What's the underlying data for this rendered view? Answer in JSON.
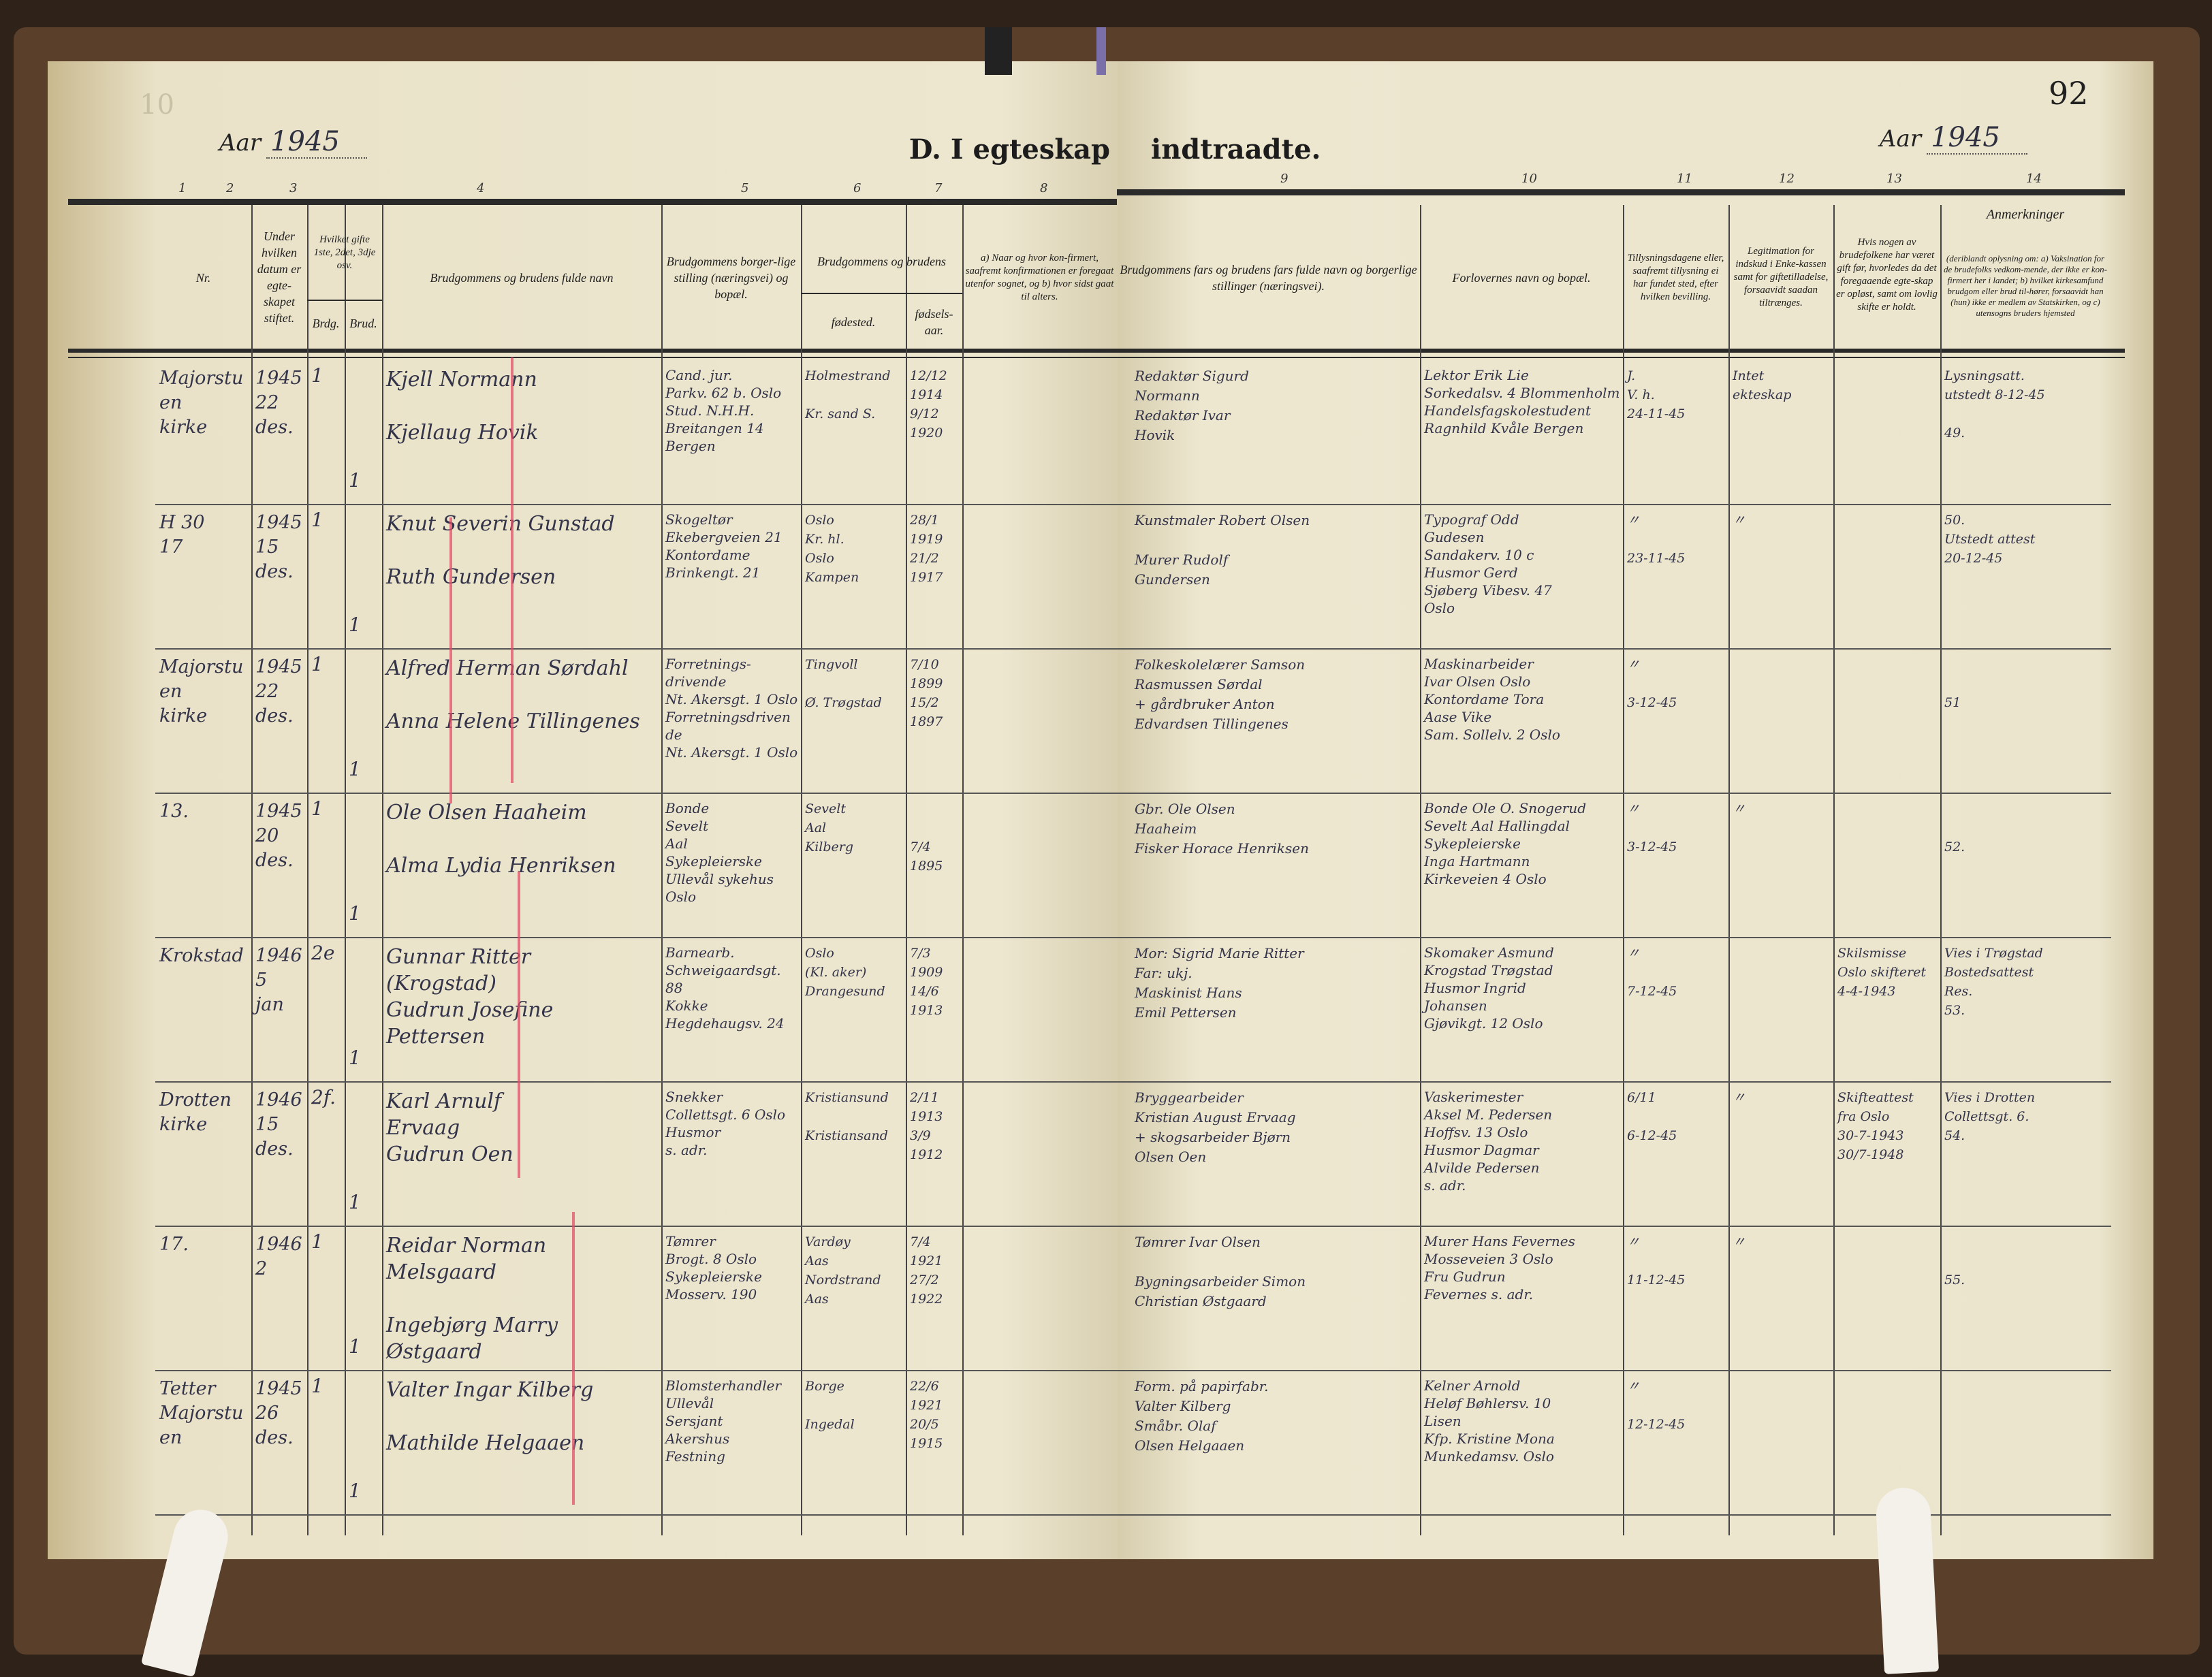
{
  "left_page": {
    "page_number": "10",
    "year_label": "Aar",
    "year_value": "1945",
    "title": "D. I egteskap"
  },
  "right_page": {
    "page_number": "92",
    "year_label": "Aar",
    "year_value": "1945",
    "title": "indtraadte."
  },
  "column_numbers": [
    "1",
    "2",
    "3",
    "4",
    "5",
    "6",
    "7",
    "8",
    "9",
    "10",
    "11",
    "12",
    "13",
    "14"
  ],
  "headers": {
    "c1": "Nr.",
    "c2": "Under hvilken datum er egte-skapet stiftet.",
    "c3": "Hvilket gifte 1ste, 2det, 3dje osv.",
    "c3a": "Brdg.",
    "c3b": "Brud.",
    "c4": "Brudgommens og brudens fulde navn",
    "c5": "Brudgommens borger-lige stilling (næringsvei) og bopæl.",
    "c67": "Brudgommens og brudens",
    "c6": "fødested.",
    "c7": "fødsels-aar.",
    "c8": "a) Naar og hvor kon-firmert, saafremt konfirmationen er foregaat utenfor sognet, og b) hvor sidst gaat til alters.",
    "c9": "Brudgommens fars og brudens fars fulde navn og borgerlige stillinger (næringsvei).",
    "c10": "Forlovernes navn og bopæl.",
    "c11": "Tillysningsdagene eller, saafremt tillysning ei har fundet sted, efter hvilken bevilling.",
    "c12": "Legitimation for indskud i Enke-kassen samt for giftetilladelse, forsaavidt saadan tiltrænges.",
    "c13": "Hvis nogen av brudefolkene har været gift før, hvorledes da det foregaaende egte-skap er opløst, samt om lovlig skifte er holdt.",
    "c14_title": "Anmerkninger",
    "c14": "(deriblandt oplysning om: a) Vaksination for de brudefolks vedkom-mende, der ikke er kon-firmert her i landet; b) hvilket kirkesamfund brudgom eller brud til-hører, forsaavidt han (hun) ikke er medlem av Statskirken, og c) utensogns bruders hjemsted"
  },
  "entries": [
    {
      "nr": "Majorstuen\nkirke",
      "date": "1945\n22\ndes.",
      "brdg": "1",
      "brud": "1",
      "names": "Kjell Normann\n\nKjellaug Hovik",
      "occupation": "Cand. jur.\nParkv. 62 b. Oslo\nStud. N.H.H.\nBreitangen 14 Bergen",
      "birthplace": "Holmestrand\n\nKr. sand S.",
      "birthyear": "12/12\n1914\n9/12\n1920",
      "confirmed": "",
      "fathers": "Redaktør Sigurd\nNormann\nRedaktør Ivar\nHovik",
      "witnesses": "Lektor Erik Lie\nSorkedalsv. 4 Blommenholm\nHandelsfagskolestudent\nRagnhild Kvåle Bergen",
      "banns": "J.\nV. h.\n24-11-45",
      "legitimation": "Intet\nekteskap",
      "previous": "",
      "remarks": "Lysningsatt.\nutstedt 8-12-45\n\n49."
    },
    {
      "nr": "H 30\n17",
      "date": "1945\n15\ndes.",
      "brdg": "1",
      "brud": "1",
      "names": "Knut Severin Gunstad\n\nRuth Gundersen",
      "occupation": "Skogeltør\nEkebergveien 21\nKontordame\nBrinkengt. 21",
      "birthplace": "Oslo\nKr. hl.\nOslo\nKampen",
      "birthyear": "28/1\n1919\n21/2\n1917",
      "confirmed": "",
      "fathers": "Kunstmaler Robert Olsen\n\nMurer Rudolf\nGundersen",
      "witnesses": "Typograf Odd\nGudesen\nSandakerv. 10 c\nHusmor Gerd\nSjøberg Vibesv. 47\nOslo",
      "banns": "〃\n\n23-11-45",
      "legitimation": "〃",
      "previous": "",
      "remarks": "50.\nUtstedt attest\n20-12-45"
    },
    {
      "nr": "Majorstuen\nkirke",
      "date": "1945\n22\ndes.",
      "brdg": "1",
      "brud": "1",
      "names": "Alfred Herman Sørdahl\n\nAnna Helene Tillingenes",
      "occupation": "Forretnings-\ndrivende\nNt. Akersgt. 1 Oslo\nForretningsdrivende\nNt. Akersgt. 1 Oslo",
      "birthplace": "Tingvoll\n\nØ. Trøgstad",
      "birthyear": "7/10\n1899\n15/2\n1897",
      "confirmed": "",
      "fathers": "Folkeskolelærer Samson\nRasmussen Sørdal\n+ gårdbruker Anton\nEdvardsen Tillingenes",
      "witnesses": "Maskinarbeider\nIvar Olsen Oslo\nKontordame Tora\nAase Vike\nSam. Sollelv. 2 Oslo",
      "banns": "〃\n\n3-12-45",
      "legitimation": "",
      "previous": "",
      "remarks": "\n\n51"
    },
    {
      "nr": "13.",
      "date": "1945\n20\ndes.",
      "brdg": "1",
      "brud": "1",
      "names": "Ole Olsen Haaheim\n\nAlma Lydia Henriksen",
      "occupation": "Bonde\nSevelt\nAal\nSykepleierske\nUllevål sykehus Oslo",
      "birthplace": "Sevelt\nAal\nKilberg",
      "birthyear": "\n\n7/4\n1895",
      "confirmed": "",
      "fathers": "Gbr. Ole Olsen\nHaaheim\nFisker Horace Henriksen",
      "witnesses": "Bonde Ole O. Snogerud\nSevelt Aal Hallingdal\nSykepleierske\nInga Hartmann\nKirkeveien 4 Oslo",
      "banns": "〃\n\n3-12-45",
      "legitimation": "〃",
      "previous": "",
      "remarks": "\n\n52."
    },
    {
      "nr": "Krokstad",
      "date": "1946\n5\njan",
      "brdg": "2e",
      "brud": "1",
      "names": "Gunnar Ritter\n(Krogstad)\nGudrun Josefine Pettersen",
      "occupation": "Barnearb.\nSchweigaardsgt. 88\nKokke\nHegdehaugsv. 24",
      "birthplace": "Oslo\n(Kl. aker)\nDrangesund",
      "birthyear": "7/3\n1909\n14/6\n1913",
      "confirmed": "",
      "fathers": "Mor: Sigrid Marie Ritter\nFar: ukj.\nMaskinist Hans\nEmil Pettersen",
      "witnesses": "Skomaker Asmund\nKrogstad Trøgstad\nHusmor Ingrid\nJohansen\nGjøvikgt. 12 Oslo",
      "banns": "〃\n\n7-12-45",
      "legitimation": "",
      "previous": "Skilsmisse\nOslo skifteret\n4-4-1943",
      "remarks": "Vies i Trøgstad\nBostedsattest\nRes.\n53."
    },
    {
      "nr": "Drotten\nkirke",
      "date": "1946\n15\ndes.",
      "brdg": "2f.",
      "brud": "1",
      "names": "Karl Arnulf\nErvaag\nGudrun Oen",
      "occupation": "Snekker\nCollettsgt. 6 Oslo\nHusmor\ns. adr.",
      "birthplace": "Kristiansund\n\nKristiansand",
      "birthyear": "2/11\n1913\n3/9\n1912",
      "confirmed": "",
      "fathers": "Bryggearbeider\nKristian August Ervaag\n+ skogsarbeider Bjørn\nOlsen Oen",
      "witnesses": "Vaskerimester\nAksel M. Pedersen\nHoffsv. 13 Oslo\nHusmor Dagmar\nAlvilde Pedersen\ns. adr.",
      "banns": "6/11\n\n6-12-45",
      "legitimation": "〃",
      "previous": "Skifteattest\nfra Oslo\n30-7-1943\n30/7-1948",
      "remarks": "Vies i Drotten\nCollettsgt. 6.\n54."
    },
    {
      "nr": "17.",
      "date": "1946\n2",
      "brdg": "1",
      "brud": "1",
      "names": "Reidar Norman Melsgaard\n\nIngebjørg Marry Østgaard",
      "occupation": "Tømrer\nBrogt. 8 Oslo\nSykepleierske\nMosserv. 190",
      "birthplace": "Vardøy\nAas\nNordstrand\nAas",
      "birthyear": "7/4\n1921\n27/2\n1922",
      "confirmed": "",
      "fathers": "Tømrer Ivar Olsen\n\nBygningsarbeider Simon\nChristian Østgaard",
      "witnesses": "Murer Hans Fevernes\nMosseveien 3 Oslo\nFru Gudrun\nFevernes s. adr.",
      "banns": "〃\n\n11-12-45",
      "legitimation": "〃",
      "previous": "",
      "remarks": "\n\n55."
    },
    {
      "nr": "Tetter\nMajorstuen",
      "date": "1945\n26\ndes.",
      "brdg": "1",
      "brud": "1",
      "names": "Valter Ingar Kilberg\n\nMathilde Helgaaen",
      "occupation": "Blomsterhandler\nUllevål\nSersjant\nAkershus\nFestning",
      "birthplace": "Borge\n\nIngedal",
      "birthyear": "22/6\n1921\n20/5\n1915",
      "confirmed": "",
      "fathers": "Form. på papirfabr.\nValter Kilberg\nSmåbr. Olaf\nOlsen Helgaaen",
      "witnesses": "Kelner Arnold\nHeløf Bøhlersv. 10\nLisen\nKfp. Kristine Mona\nMunkedamsv. Oslo",
      "banns": "〃\n\n12-12-45",
      "legitimation": "",
      "previous": "",
      "remarks": ""
    }
  ],
  "colors": {
    "paper": "#ebe5cd",
    "ink": "#33344a",
    "binding": "#5a3f2b",
    "red_rule": "#e0506a"
  }
}
